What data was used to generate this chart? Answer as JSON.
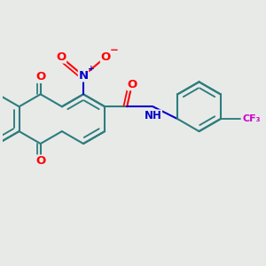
{
  "bg_color": "#e8eae8",
  "bond_color": "#2d7d7d",
  "bond_width": 1.5,
  "atom_colors": {
    "O": "#ff0000",
    "N": "#0000cc",
    "F": "#cc00cc",
    "H": "#0000cc",
    "C": "#2d7d7d"
  },
  "font_size": 8.5
}
